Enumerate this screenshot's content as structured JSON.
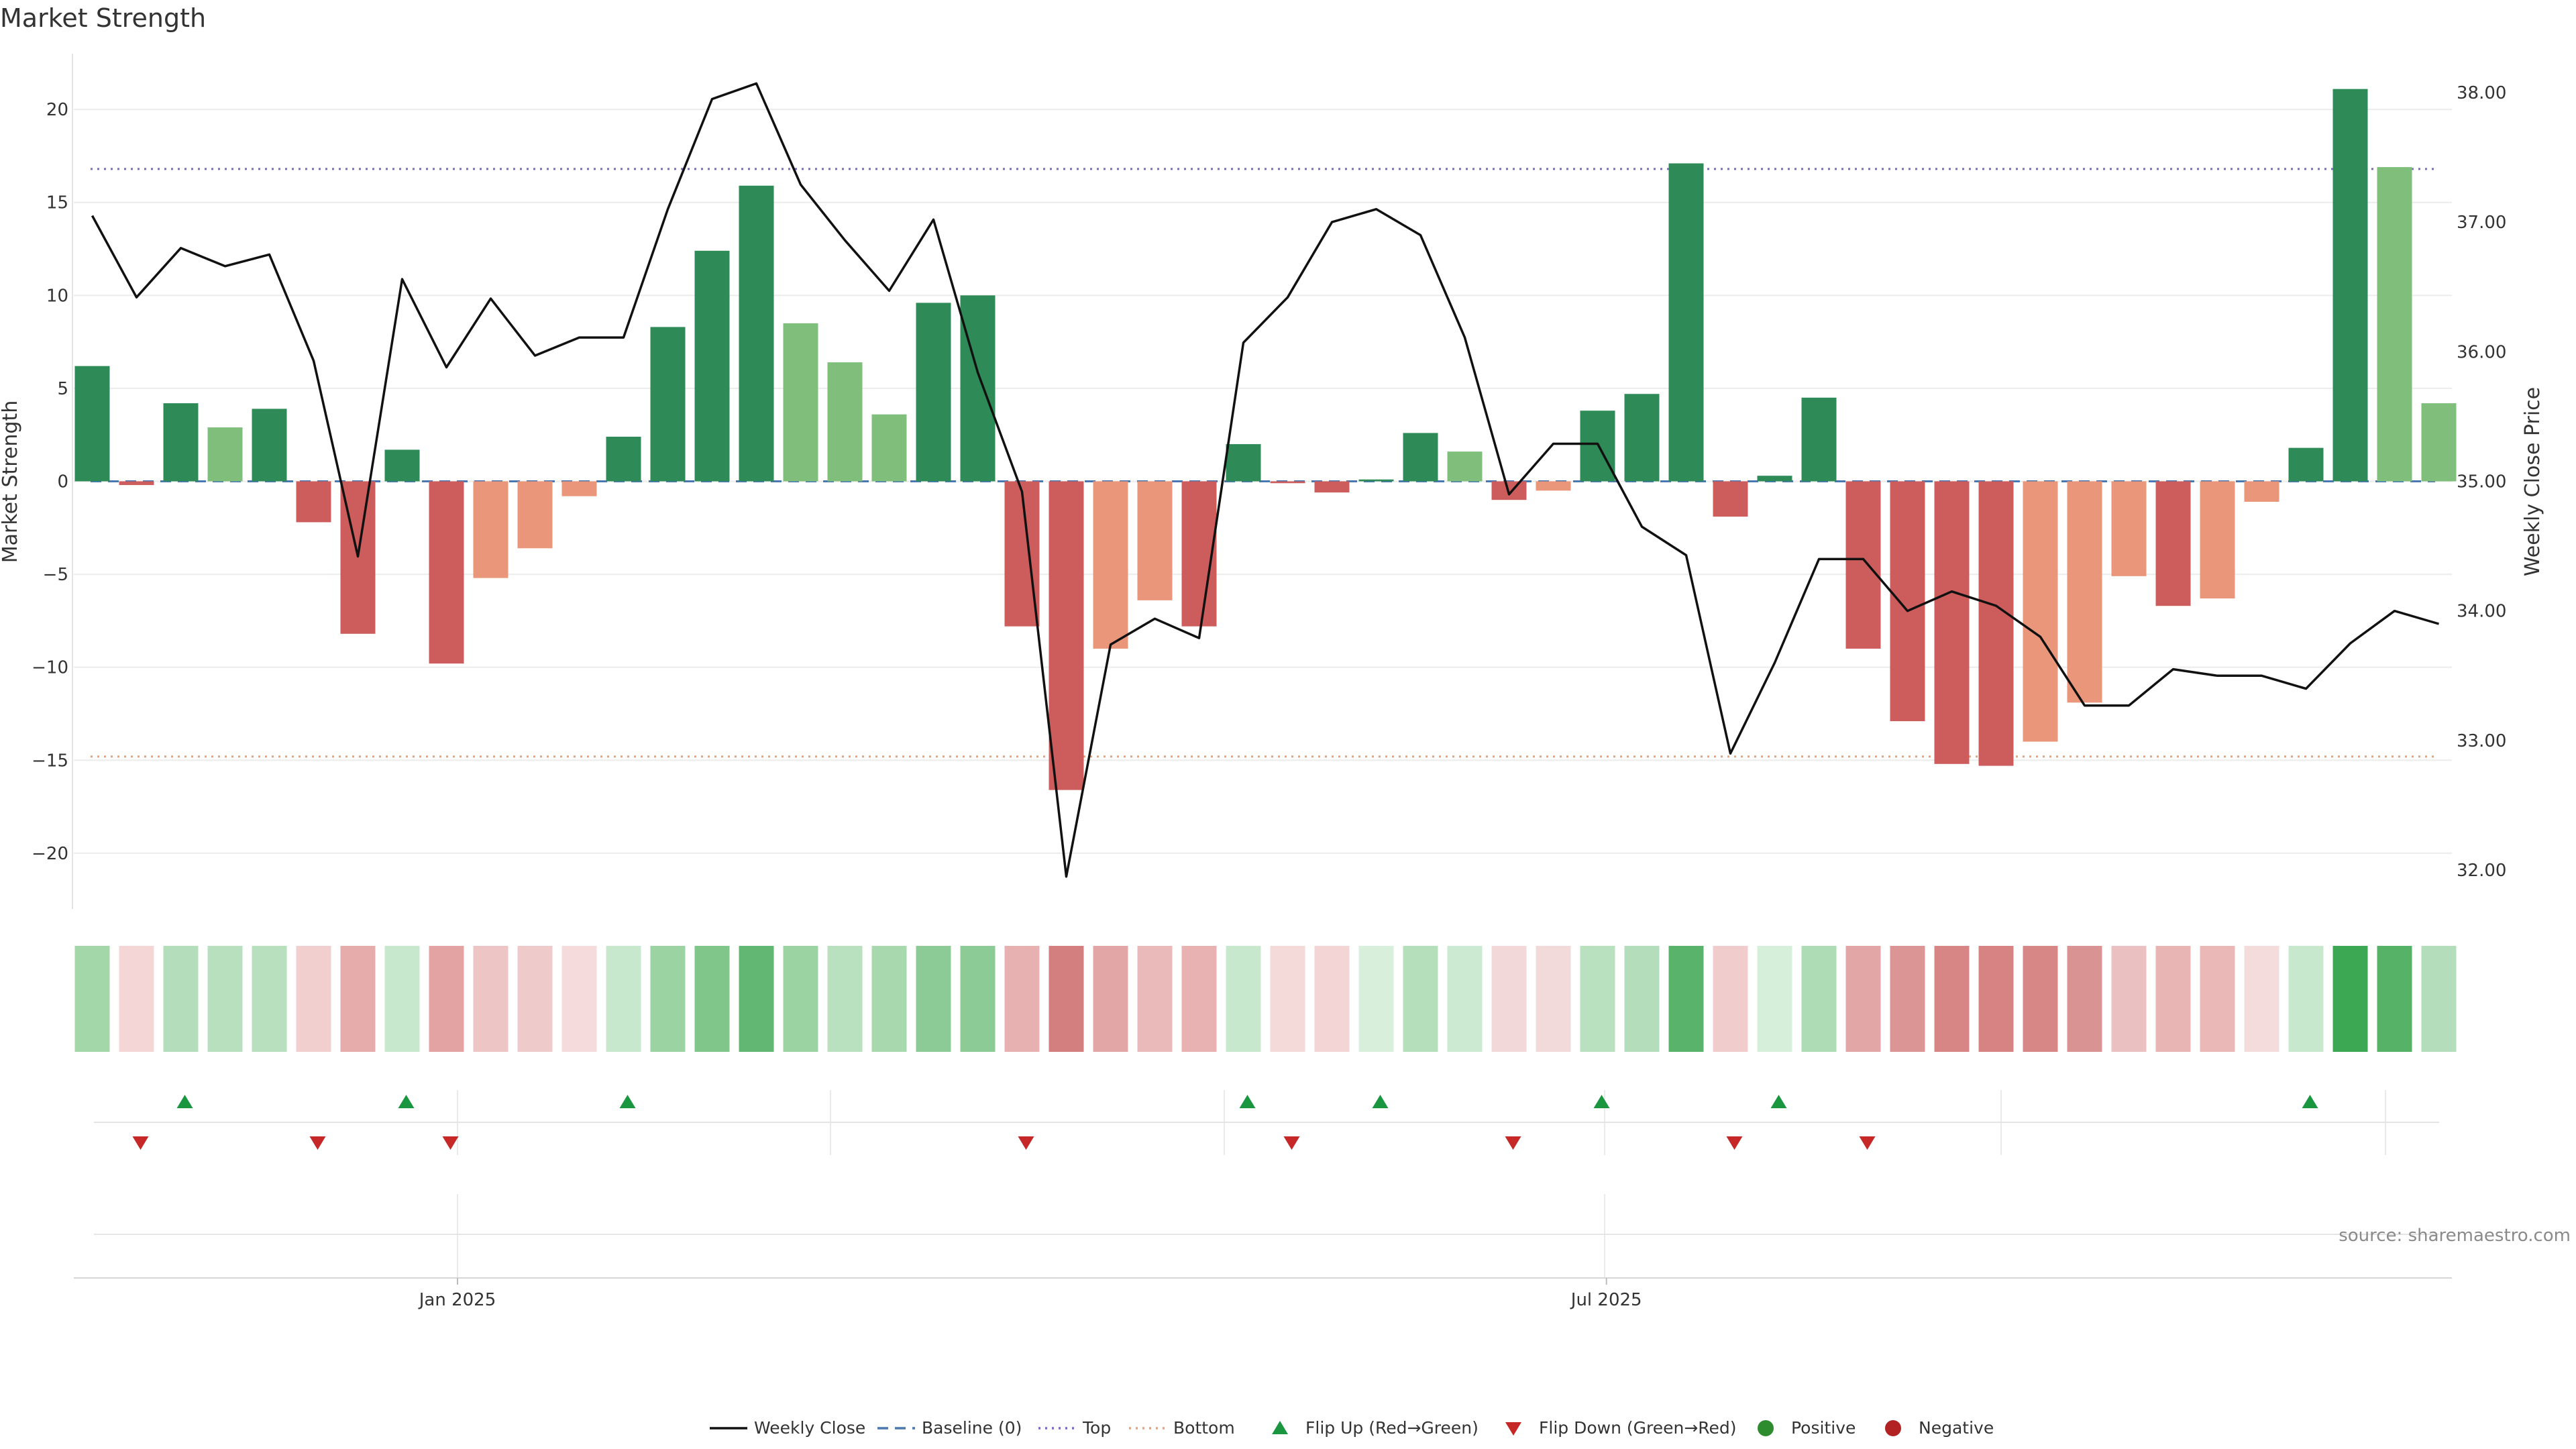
{
  "chart_data": {
    "type": "bar",
    "title": "Market Strength",
    "ylabel_left": "Market Strength",
    "ylabel_right": "Weekly Close Price",
    "y_left_range": [
      -23,
      23
    ],
    "y_left_ticks": [
      20,
      15,
      10,
      5,
      0,
      -5,
      -10,
      -15,
      -20
    ],
    "y_left_tick_labels": [
      "20",
      "15",
      "10",
      "5",
      "0",
      "−5",
      "−10",
      "−15",
      "−20"
    ],
    "y_right_range": [
      31.7,
      38.3
    ],
    "y_right_ticks": [
      38.0,
      37.0,
      36.0,
      35.0,
      34.0,
      33.0,
      32.0
    ],
    "y_right_tick_labels": [
      "38.00",
      "37.00",
      "36.00",
      "35.00",
      "34.00",
      "33.00",
      "32.00"
    ],
    "x_tick_labels": [
      {
        "label": "Jan 2025",
        "at_week": 8.25
      },
      {
        "label": "Jul 2025",
        "at_week": 34.2
      }
    ],
    "grid": true,
    "strength": [
      6.2,
      -0.2,
      4.2,
      2.9,
      3.9,
      -2.2,
      -8.2,
      1.7,
      -9.8,
      -5.2,
      -3.6,
      -0.8,
      2.4,
      8.3,
      12.4,
      15.9,
      8.5,
      6.4,
      3.6,
      9.6,
      10.0,
      -7.8,
      -16.6,
      -9.0,
      -6.4,
      -7.8,
      2.0,
      -0.1,
      -0.6,
      0.1,
      2.6,
      1.6,
      -1.0,
      -0.5,
      3.8,
      4.7,
      17.1,
      -1.9,
      0.3,
      4.5,
      -9.0,
      -12.9,
      -15.2,
      -15.3,
      -14.0,
      -11.9,
      -5.1,
      -6.7,
      -6.3,
      -1.1,
      1.8,
      21.1,
      16.9,
      4.2
    ],
    "bar_colors": [
      "#2e8b57",
      "#cd5c5c",
      "#2e8b57",
      "#7fbf7b",
      "#2e8b57",
      "#cd5c5c",
      "#cd5c5c",
      "#2e8b57",
      "#cd5c5c",
      "#e9967a",
      "#e9967a",
      "#e9967a",
      "#2e8b57",
      "#2e8b57",
      "#2e8b57",
      "#2e8b57",
      "#7fbf7b",
      "#7fbf7b",
      "#7fbf7b",
      "#2e8b57",
      "#2e8b57",
      "#cd5c5c",
      "#cd5c5c",
      "#e9967a",
      "#e9967a",
      "#cd5c5c",
      "#2e8b57",
      "#cd5c5c",
      "#cd5c5c",
      "#2e8b57",
      "#2e8b57",
      "#7fbf7b",
      "#cd5c5c",
      "#e9967a",
      "#2e8b57",
      "#2e8b57",
      "#2e8b57",
      "#cd5c5c",
      "#2e8b57",
      "#2e8b57",
      "#cd5c5c",
      "#cd5c5c",
      "#cd5c5c",
      "#cd5c5c",
      "#e9967a",
      "#e9967a",
      "#e9967a",
      "#cd5c5c",
      "#e9967a",
      "#e9967a",
      "#2e8b57",
      "#2e8b57",
      "#7fbf7b",
      "#7fbf7b"
    ],
    "weekly_close": [
      37.05,
      36.42,
      36.8,
      36.66,
      36.75,
      35.93,
      34.42,
      36.56,
      35.88,
      36.41,
      35.97,
      36.11,
      36.11,
      37.1,
      37.95,
      38.07,
      37.29,
      36.86,
      36.47,
      37.02,
      35.84,
      34.92,
      31.95,
      33.74,
      33.94,
      33.79,
      36.07,
      36.42,
      37.0,
      37.1,
      36.9,
      36.11,
      34.9,
      35.29,
      35.29,
      34.65,
      34.43,
      32.9,
      33.6,
      34.4,
      34.4,
      34.0,
      34.15,
      34.04,
      33.8,
      33.27,
      33.27,
      33.55,
      33.5,
      33.5,
      33.4,
      33.75,
      34.0,
      33.9
    ],
    "top_level": 16.8,
    "bottom_level": -14.8,
    "baseline": 0,
    "heat_colors": [
      "#a3d6a9",
      "#f4d6d6",
      "#b4debb",
      "#b8e0be",
      "#b8e0be",
      "#f1cfcf",
      "#e6abab",
      "#c8e8cd",
      "#e3a3a3",
      "#edc5c5",
      "#efcaca",
      "#f5dbdb",
      "#c8e8cd",
      "#9cd3a3",
      "#80c589",
      "#62b872",
      "#9cd3a3",
      "#b9e1bf",
      "#a8d9ae",
      "#8ccb96",
      "#8ccb96",
      "#e8b1b1",
      "#d47f7f",
      "#e3a6a6",
      "#eab9b9",
      "#e8b2b2",
      "#c8e8cd",
      "#f5dada",
      "#f3d5d5",
      "#d8efdb",
      "#b5dfbb",
      "#cce9d1",
      "#f2d8d8",
      "#f2dada",
      "#b9e1bf",
      "#b4debb",
      "#5ab36b",
      "#f1cccc",
      "#d6efda",
      "#aedcb4",
      "#e3a6a6",
      "#dc9595",
      "#d88585",
      "#d78383",
      "#d88787",
      "#da9393",
      "#eac0c0",
      "#e8b4b4",
      "#ebb8b8",
      "#f5dcdc",
      "#c8e8cd",
      "#3da853",
      "#55b267",
      "#b4debb"
    ],
    "flip_up_weeks": [
      2,
      7,
      12,
      26,
      29,
      34,
      38,
      50
    ],
    "flip_down_weeks": [
      1,
      5,
      8,
      21,
      27,
      32,
      37,
      40
    ],
    "source_text": "source: sharemaestro.com",
    "legend": [
      {
        "key": "weekly_close",
        "label": "Weekly Close",
        "color": "#111111",
        "style": "line"
      },
      {
        "key": "baseline",
        "label": "Baseline (0)",
        "color": "#4a78b0",
        "style": "dash"
      },
      {
        "key": "top",
        "label": "Top",
        "color": "#7b68c8",
        "style": "dot"
      },
      {
        "key": "bottom",
        "label": "Bottom",
        "color": "#f0a070",
        "style": "dot"
      },
      {
        "key": "flip_up",
        "label": "Flip Up (Red→Green)",
        "color": "#1a9641",
        "style": "tri-up"
      },
      {
        "key": "flip_down",
        "label": "Flip Down (Green→Red)",
        "color": "#c62828",
        "style": "tri-down"
      },
      {
        "key": "positive",
        "label": "Positive",
        "color": "#2e8b2e",
        "style": "circle"
      },
      {
        "key": "negative",
        "label": "Negative",
        "color": "#b22222",
        "style": "circle"
      }
    ]
  }
}
